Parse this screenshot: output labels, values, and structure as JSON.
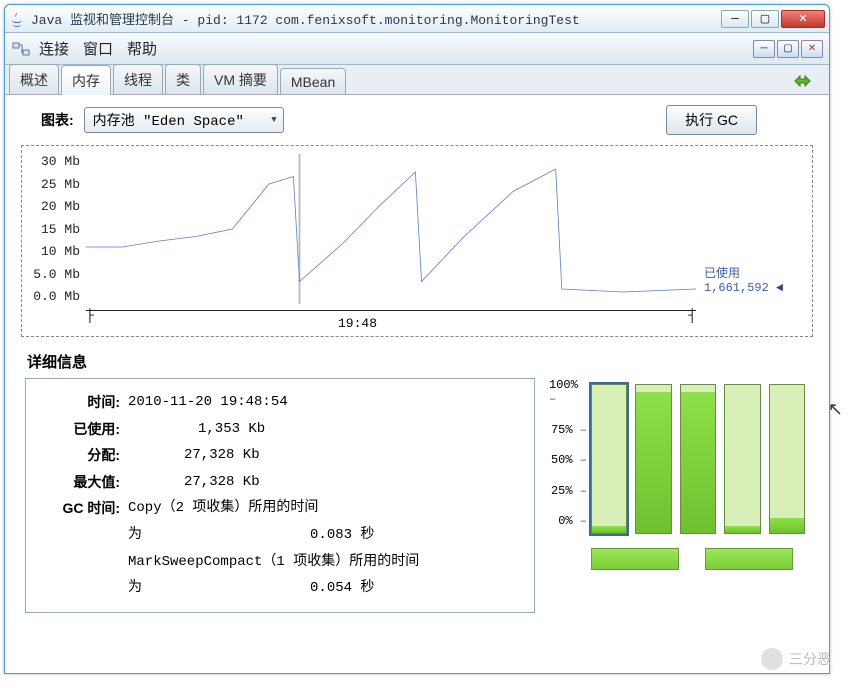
{
  "window": {
    "title": "Java 监视和管理控制台 - pid: 1172 com.fenixsoft.monitoring.MonitoringTest"
  },
  "menubar": {
    "items": [
      "连接",
      "窗口",
      "帮助"
    ]
  },
  "tabs": {
    "items": [
      "概述",
      "内存",
      "线程",
      "类",
      "VM 摘要",
      "MBean"
    ],
    "active_index": 1
  },
  "topControls": {
    "chart_label": "图表:",
    "selector_value": "内存池 \"Eden Space\"",
    "gc_button": "执行 GC"
  },
  "chart": {
    "type": "line",
    "y_ticks": [
      "30 Mb",
      "25 Mb",
      "20 Mb",
      "15 Mb",
      "10 Mb",
      "5.0 Mb",
      "0.0 Mb"
    ],
    "ylim": [
      0,
      30
    ],
    "x_label": "19:48",
    "x_label_pos_pct": 35,
    "line_color": "#5a7fc0",
    "grid_color": "#888888",
    "points_pct": [
      {
        "x": 0,
        "y": 62
      },
      {
        "x": 6,
        "y": 62
      },
      {
        "x": 12,
        "y": 58
      },
      {
        "x": 18,
        "y": 55
      },
      {
        "x": 24,
        "y": 50
      },
      {
        "x": 30,
        "y": 20
      },
      {
        "x": 34,
        "y": 15
      },
      {
        "x": 35,
        "y": 85
      },
      {
        "x": 42,
        "y": 60
      },
      {
        "x": 48,
        "y": 35
      },
      {
        "x": 54,
        "y": 12
      },
      {
        "x": 55,
        "y": 85
      },
      {
        "x": 62,
        "y": 55
      },
      {
        "x": 70,
        "y": 25
      },
      {
        "x": 77,
        "y": 10
      },
      {
        "x": 78,
        "y": 90
      },
      {
        "x": 88,
        "y": 92
      },
      {
        "x": 100,
        "y": 90
      }
    ],
    "indicator": {
      "label": "已使用",
      "value": "1,661,592"
    }
  },
  "details": {
    "section_title": "详细信息",
    "rows": [
      {
        "k": "时间:",
        "v": "2010-11-20 19:48:54"
      },
      {
        "k": "已使用:",
        "v": "1,353 Kb"
      },
      {
        "k": "分配:",
        "v": "27,328 Kb"
      },
      {
        "k": "最大值:",
        "v": "27,328 Kb"
      }
    ],
    "gc_label": "GC 时间:",
    "gc_lines": [
      "Copy（2 项收集）所用的时间",
      "为                    0.083 秒",
      "MarkSweepCompact（1 项收集）所用的时间",
      "为                    0.054 秒"
    ]
  },
  "bars": {
    "y_labels": [
      "100%",
      "75%",
      "50%",
      "25%",
      "0%"
    ],
    "columns": [
      {
        "fill_pct": 5,
        "selected": true
      },
      {
        "fill_pct": 95,
        "selected": false
      },
      {
        "fill_pct": 95,
        "selected": false
      },
      {
        "fill_pct": 5,
        "selected": false
      },
      {
        "fill_pct": 10,
        "selected": false
      }
    ],
    "fill_color": "#7acc3a",
    "track_color": "#d8f0b8",
    "border_color": "#6a8a4a"
  },
  "watermark": "三分恶"
}
